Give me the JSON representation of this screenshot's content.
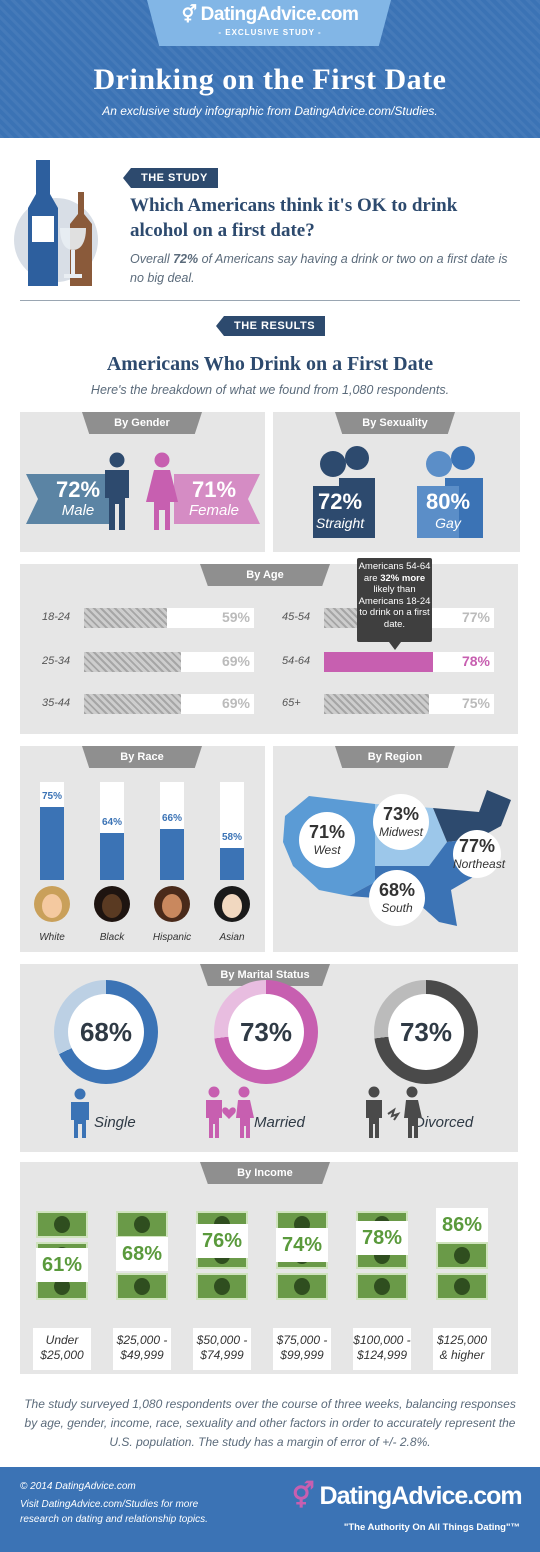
{
  "header": {
    "logo": "DatingAdvice.com",
    "exclusive": "- EXCLUSIVE STUDY -",
    "title": "Drinking on the First Date",
    "subtitle": "An exclusive study infographic from DatingAdvice.com/Studies."
  },
  "study": {
    "pill": "THE STUDY",
    "question": "Which Americans think it's OK to drink alcohol on a first date?",
    "desc_a": "Overall ",
    "desc_pct": "72%",
    "desc_b": " of Americans say having a drink or two on a first date is no big deal."
  },
  "results": {
    "pill": "THE RESULTS",
    "title": "Americans Who Drink on a First Date",
    "subtitle": "Here's the breakdown of what we found from 1,080 respondents."
  },
  "gender": {
    "tab": "By Gender",
    "male_pct": "72%",
    "male": "Male",
    "female_pct": "71%",
    "female": "Female"
  },
  "sexuality": {
    "tab": "By Sexuality",
    "straight_pct": "72%",
    "straight": "Straight",
    "gay_pct": "80%",
    "gay": "Gay"
  },
  "age": {
    "tab": "By Age",
    "tip_a": "Americans 54-64 are ",
    "tip_b": "32% more",
    "tip_c": " likely than Americans 18-24 to drink on a first date."
  },
  "race": {
    "tab": "By Race"
  },
  "region": {
    "tab": "By Region"
  },
  "marital": {
    "tab": "By Marital Status"
  },
  "income": {
    "tab": "By Income"
  },
  "chart_data": [
    {
      "type": "bar",
      "title": "By Age",
      "categories": [
        "18-24",
        "25-34",
        "35-44",
        "45-54",
        "54-64",
        "65+"
      ],
      "values": [
        59,
        69,
        69,
        77,
        78,
        75
      ],
      "unit": "%"
    },
    {
      "type": "bar",
      "title": "By Race",
      "categories": [
        "White",
        "Black",
        "Hispanic",
        "Asian"
      ],
      "values": [
        75,
        64,
        66,
        58
      ],
      "unit": "%"
    },
    {
      "type": "table",
      "title": "By Region",
      "categories": [
        "West",
        "Midwest",
        "Northeast",
        "South"
      ],
      "values": [
        71,
        73,
        77,
        68
      ],
      "unit": "%"
    },
    {
      "type": "pie",
      "title": "By Marital Status",
      "categories": [
        "Single",
        "Married",
        "Divorced"
      ],
      "values": [
        68,
        73,
        73
      ],
      "unit": "%"
    },
    {
      "type": "bar",
      "title": "By Income",
      "categories": [
        "Under $25,000",
        "$25,000 - $49,999",
        "$50,000 - $74,999",
        "$75,000 - $99,999",
        "$100,000 - $124,999",
        "$125,000 & higher"
      ],
      "values": [
        61,
        68,
        76,
        74,
        78,
        86
      ],
      "unit": "%"
    }
  ],
  "note": "The study surveyed 1,080 respondents over the course of three weeks, balancing responses by age, gender, income, race, sexuality and other factors in order to accurately represent the U.S. population. The study has a margin of error of +/- 2.8%.",
  "footer": {
    "copy": "© 2014 DatingAdvice.com",
    "visit": "Visit DatingAdvice.com/Studies for more research on dating and relationship topics.",
    "brand": "DatingAdvice.com",
    "tagline": "\"The Authority On All Things Dating\"™"
  },
  "colors": {
    "blue": "#3b73b5",
    "navy": "#2d4a6e",
    "pink": "#c75fb0",
    "green": "#5a9a3c",
    "grey": "#8f8f8f"
  }
}
